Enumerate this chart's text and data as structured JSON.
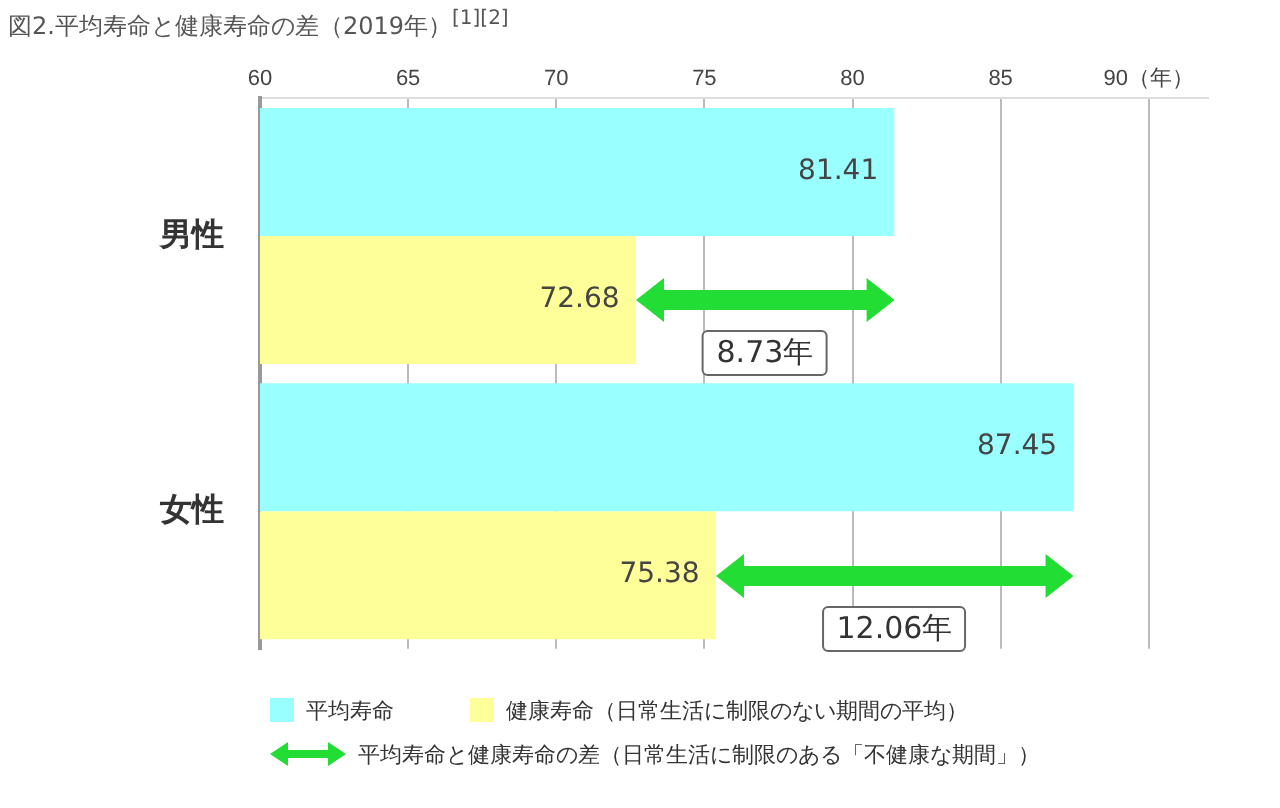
{
  "chart_data": {
    "type": "bar",
    "orientation": "horizontal",
    "title": "図2.平均寿命と健康寿命の差（2019年）$^{[1][2]}$",
    "categories": [
      "男性",
      "女性"
    ],
    "series": [
      {
        "name": "平均寿命",
        "color": "#99ffff",
        "values": [
          81.41,
          87.45
        ]
      },
      {
        "name": "健康寿命（日常生活に制限のない期間の平均）",
        "color": "#ffff99",
        "values": [
          72.68,
          75.38
        ]
      }
    ],
    "xlim": [
      60,
      92
    ],
    "xticks": [
      60,
      65,
      70,
      75,
      80,
      85,
      {
        "value": 90,
        "label": "90（年）"
      }
    ],
    "grid": "x",
    "legend": "bottom",
    "data_labels": true,
    "annotations": [
      "8.73年",
      "12.06年",
      "平均寿命と健康寿命の差（日常生活に制限のある「不健康な期間」）"
    ]
  }
}
